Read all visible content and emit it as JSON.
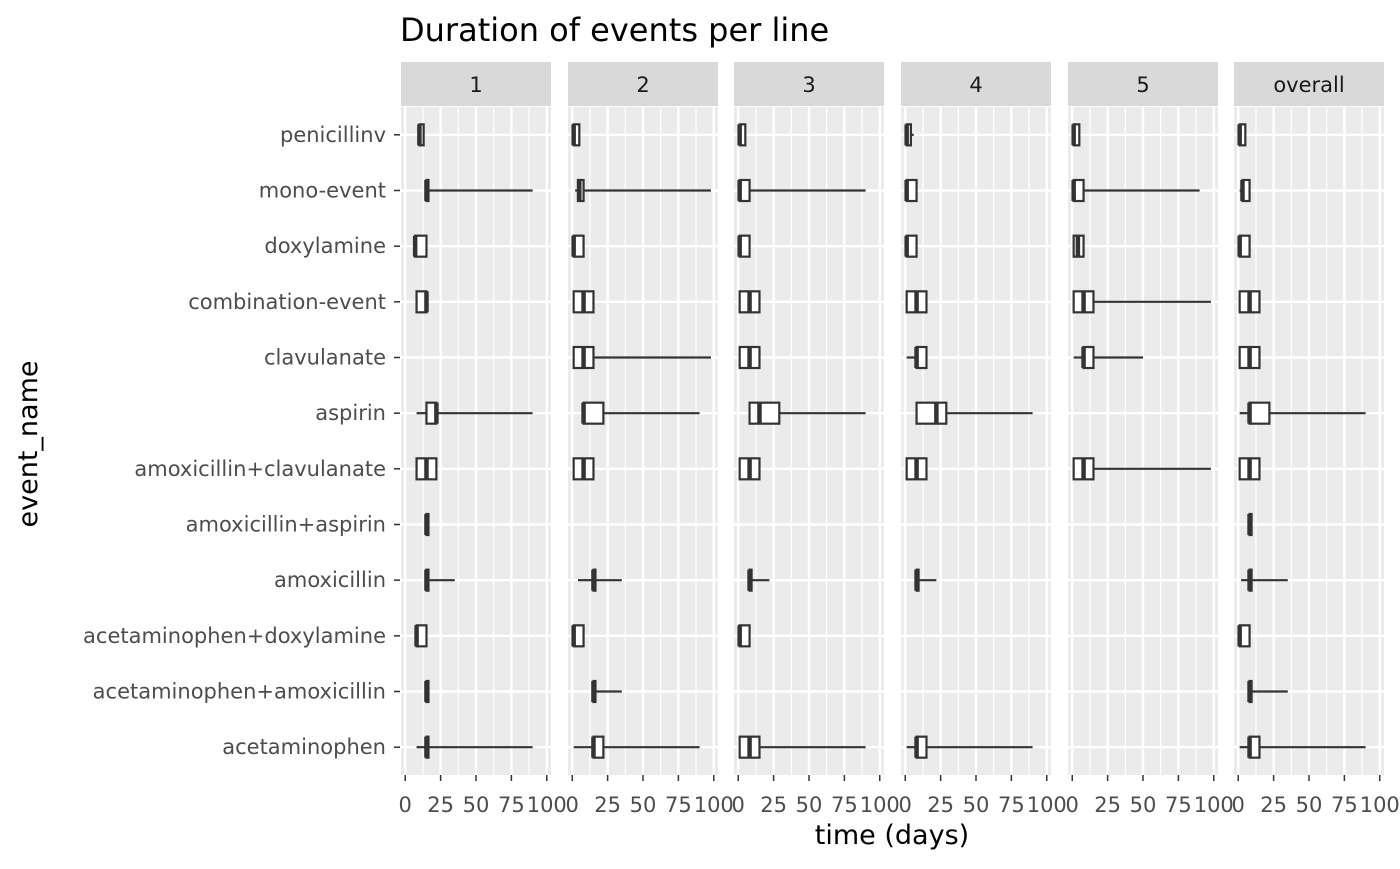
{
  "chart_data": {
    "type": "boxplot",
    "title": "Duration of events per line",
    "xlabel": "time (days)",
    "ylabel": "event_name",
    "xlim": [
      -3,
      103
    ],
    "x_ticks": [
      0,
      25,
      50,
      75,
      100
    ],
    "x_tick_labels": [
      "0",
      "25",
      "50",
      "75",
      "100"
    ],
    "grid": true,
    "facet_colors": {
      "panel_bg": "#EBEBEB",
      "strip_bg": "#D9D9D9",
      "grid": "#FFFFFF",
      "box_stroke": "#333333",
      "box_fill": "#FFFFFF"
    },
    "categories": [
      "acetaminophen",
      "acetaminophen+amoxicillin",
      "acetaminophen+doxylamine",
      "amoxicillin",
      "amoxicillin+aspirin",
      "amoxicillin+clavulanate",
      "aspirin",
      "clavulanate",
      "combination-event",
      "doxylamine",
      "mono-event",
      "penicillinv"
    ],
    "facets": [
      {
        "label": "1",
        "boxes": [
          {
            "event": "acetaminophen",
            "min": 8,
            "q1": 15,
            "median": 15,
            "q3": 16,
            "max": 90
          },
          {
            "event": "acetaminophen+amoxicillin",
            "min": 15,
            "q1": 15,
            "median": 15,
            "q3": 15,
            "max": 15
          },
          {
            "event": "acetaminophen+doxylamine",
            "min": 8,
            "q1": 8,
            "median": 8,
            "q3": 15,
            "max": 15
          },
          {
            "event": "amoxicillin",
            "min": 15,
            "q1": 15,
            "median": 15,
            "q3": 15,
            "max": 35
          },
          {
            "event": "amoxicillin+aspirin",
            "min": 15,
            "q1": 15,
            "median": 15,
            "q3": 15,
            "max": 15
          },
          {
            "event": "amoxicillin+clavulanate",
            "min": 8,
            "q1": 8,
            "median": 15,
            "q3": 22,
            "max": 22
          },
          {
            "event": "aspirin",
            "min": 8,
            "q1": 15,
            "median": 22,
            "q3": 22,
            "max": 90
          },
          {
            "event": "combination-event",
            "min": 8,
            "q1": 8,
            "median": 15,
            "q3": 15,
            "max": 15
          },
          {
            "event": "doxylamine",
            "min": 7,
            "q1": 7,
            "median": 7,
            "q3": 15,
            "max": 15
          },
          {
            "event": "mono-event",
            "min": 15,
            "q1": 15,
            "median": 15,
            "q3": 15,
            "max": 90
          },
          {
            "event": "penicillinv",
            "min": 10,
            "q1": 10,
            "median": 10,
            "q3": 13,
            "max": 13
          }
        ]
      },
      {
        "label": "2",
        "boxes": [
          {
            "event": "acetaminophen",
            "min": 1,
            "q1": 15,
            "median": 15,
            "q3": 22,
            "max": 90
          },
          {
            "event": "acetaminophen+amoxicillin",
            "min": 15,
            "q1": 15,
            "median": 15,
            "q3": 15,
            "max": 35
          },
          {
            "event": "acetaminophen+doxylamine",
            "min": 1,
            "q1": 1,
            "median": 1,
            "q3": 8,
            "max": 8
          },
          {
            "event": "amoxicillin",
            "min": 4,
            "q1": 15,
            "median": 15,
            "q3": 15,
            "max": 35
          },
          {
            "event": "amoxicillin+clavulanate",
            "min": 1,
            "q1": 1,
            "median": 8,
            "q3": 15,
            "max": 15
          },
          {
            "event": "aspirin",
            "min": 8,
            "q1": 8,
            "median": 8,
            "q3": 22,
            "max": 90
          },
          {
            "event": "clavulanate",
            "min": 1,
            "q1": 1,
            "median": 8,
            "q3": 15,
            "max": 98
          },
          {
            "event": "combination-event",
            "min": 1,
            "q1": 1,
            "median": 8,
            "q3": 15,
            "max": 15
          },
          {
            "event": "doxylamine",
            "min": 1,
            "q1": 1,
            "median": 1,
            "q3": 8,
            "max": 8
          },
          {
            "event": "mono-event",
            "min": 2,
            "q1": 4,
            "median": 5,
            "q3": 8,
            "max": 98
          },
          {
            "event": "penicillinv",
            "min": 1,
            "q1": 1,
            "median": 1,
            "q3": 5,
            "max": 5
          }
        ]
      },
      {
        "label": "3",
        "boxes": [
          {
            "event": "acetaminophen",
            "min": 1,
            "q1": 1,
            "median": 8,
            "q3": 15,
            "max": 90
          },
          {
            "event": "acetaminophen+doxylamine",
            "min": 1,
            "q1": 1,
            "median": 1,
            "q3": 8,
            "max": 8
          },
          {
            "event": "amoxicillin",
            "min": 8,
            "q1": 8,
            "median": 8,
            "q3": 8,
            "max": 22
          },
          {
            "event": "amoxicillin+clavulanate",
            "min": 1,
            "q1": 1,
            "median": 8,
            "q3": 15,
            "max": 15
          },
          {
            "event": "aspirin",
            "min": 8,
            "q1": 8,
            "median": 15,
            "q3": 29,
            "max": 90
          },
          {
            "event": "clavulanate",
            "min": 1,
            "q1": 1,
            "median": 8,
            "q3": 15,
            "max": 15
          },
          {
            "event": "combination-event",
            "min": 1,
            "q1": 1,
            "median": 8,
            "q3": 15,
            "max": 15
          },
          {
            "event": "doxylamine",
            "min": 1,
            "q1": 1,
            "median": 1,
            "q3": 8,
            "max": 8
          },
          {
            "event": "mono-event",
            "min": 1,
            "q1": 1,
            "median": 1,
            "q3": 8,
            "max": 90
          },
          {
            "event": "penicillinv",
            "min": 1,
            "q1": 1,
            "median": 1,
            "q3": 5,
            "max": 5
          }
        ]
      },
      {
        "label": "4",
        "boxes": [
          {
            "event": "acetaminophen",
            "min": 1,
            "q1": 8,
            "median": 8,
            "q3": 15,
            "max": 90
          },
          {
            "event": "amoxicillin",
            "min": 8,
            "q1": 8,
            "median": 8,
            "q3": 8,
            "max": 22
          },
          {
            "event": "amoxicillin+clavulanate",
            "min": 1,
            "q1": 1,
            "median": 8,
            "q3": 15,
            "max": 15
          },
          {
            "event": "aspirin",
            "min": 8,
            "q1": 8,
            "median": 22,
            "q3": 29,
            "max": 90
          },
          {
            "event": "clavulanate",
            "min": 1,
            "q1": 8,
            "median": 8,
            "q3": 15,
            "max": 15
          },
          {
            "event": "combination-event",
            "min": 1,
            "q1": 1,
            "median": 8,
            "q3": 15,
            "max": 15
          },
          {
            "event": "doxylamine",
            "min": 1,
            "q1": 1,
            "median": 1,
            "q3": 8,
            "max": 8
          },
          {
            "event": "mono-event",
            "min": 1,
            "q1": 1,
            "median": 1,
            "q3": 8,
            "max": 8
          },
          {
            "event": "penicillinv",
            "min": 1,
            "q1": 1,
            "median": 1,
            "q3": 4,
            "max": 6
          }
        ]
      },
      {
        "label": "5",
        "boxes": [
          {
            "event": "amoxicillin+clavulanate",
            "min": 1,
            "q1": 1,
            "median": 8,
            "q3": 15,
            "max": 98
          },
          {
            "event": "clavulanate",
            "min": 1,
            "q1": 8,
            "median": 8,
            "q3": 15,
            "max": 50
          },
          {
            "event": "combination-event",
            "min": 1,
            "q1": 1,
            "median": 8,
            "q3": 15,
            "max": 98
          },
          {
            "event": "doxylamine",
            "min": 1,
            "q1": 1,
            "median": 4,
            "q3": 8,
            "max": 8
          },
          {
            "event": "mono-event",
            "min": 1,
            "q1": 1,
            "median": 1,
            "q3": 8,
            "max": 90
          },
          {
            "event": "penicillinv",
            "min": 1,
            "q1": 1,
            "median": 1,
            "q3": 5,
            "max": 5
          }
        ]
      },
      {
        "label": "overall",
        "boxes": [
          {
            "event": "acetaminophen",
            "min": 1,
            "q1": 8,
            "median": 8,
            "q3": 15,
            "max": 90
          },
          {
            "event": "acetaminophen+amoxicillin",
            "min": 8,
            "q1": 8,
            "median": 8,
            "q3": 8,
            "max": 35
          },
          {
            "event": "acetaminophen+doxylamine",
            "min": 1,
            "q1": 1,
            "median": 1,
            "q3": 8,
            "max": 8
          },
          {
            "event": "amoxicillin",
            "min": 2,
            "q1": 8,
            "median": 8,
            "q3": 8,
            "max": 35
          },
          {
            "event": "amoxicillin+aspirin",
            "min": 8,
            "q1": 8,
            "median": 8,
            "q3": 8,
            "max": 8
          },
          {
            "event": "amoxicillin+clavulanate",
            "min": 1,
            "q1": 1,
            "median": 8,
            "q3": 15,
            "max": 15
          },
          {
            "event": "aspirin",
            "min": 1,
            "q1": 8,
            "median": 8,
            "q3": 22,
            "max": 90
          },
          {
            "event": "clavulanate",
            "min": 1,
            "q1": 1,
            "median": 8,
            "q3": 15,
            "max": 15
          },
          {
            "event": "combination-event",
            "min": 1,
            "q1": 1,
            "median": 8,
            "q3": 15,
            "max": 15
          },
          {
            "event": "doxylamine",
            "min": 1,
            "q1": 1,
            "median": 1,
            "q3": 8,
            "max": 8
          },
          {
            "event": "mono-event",
            "min": 1,
            "q1": 3,
            "median": 3,
            "q3": 8,
            "max": 8
          },
          {
            "event": "penicillinv",
            "min": 1,
            "q1": 1,
            "median": 1,
            "q3": 5,
            "max": 5
          }
        ]
      }
    ]
  }
}
